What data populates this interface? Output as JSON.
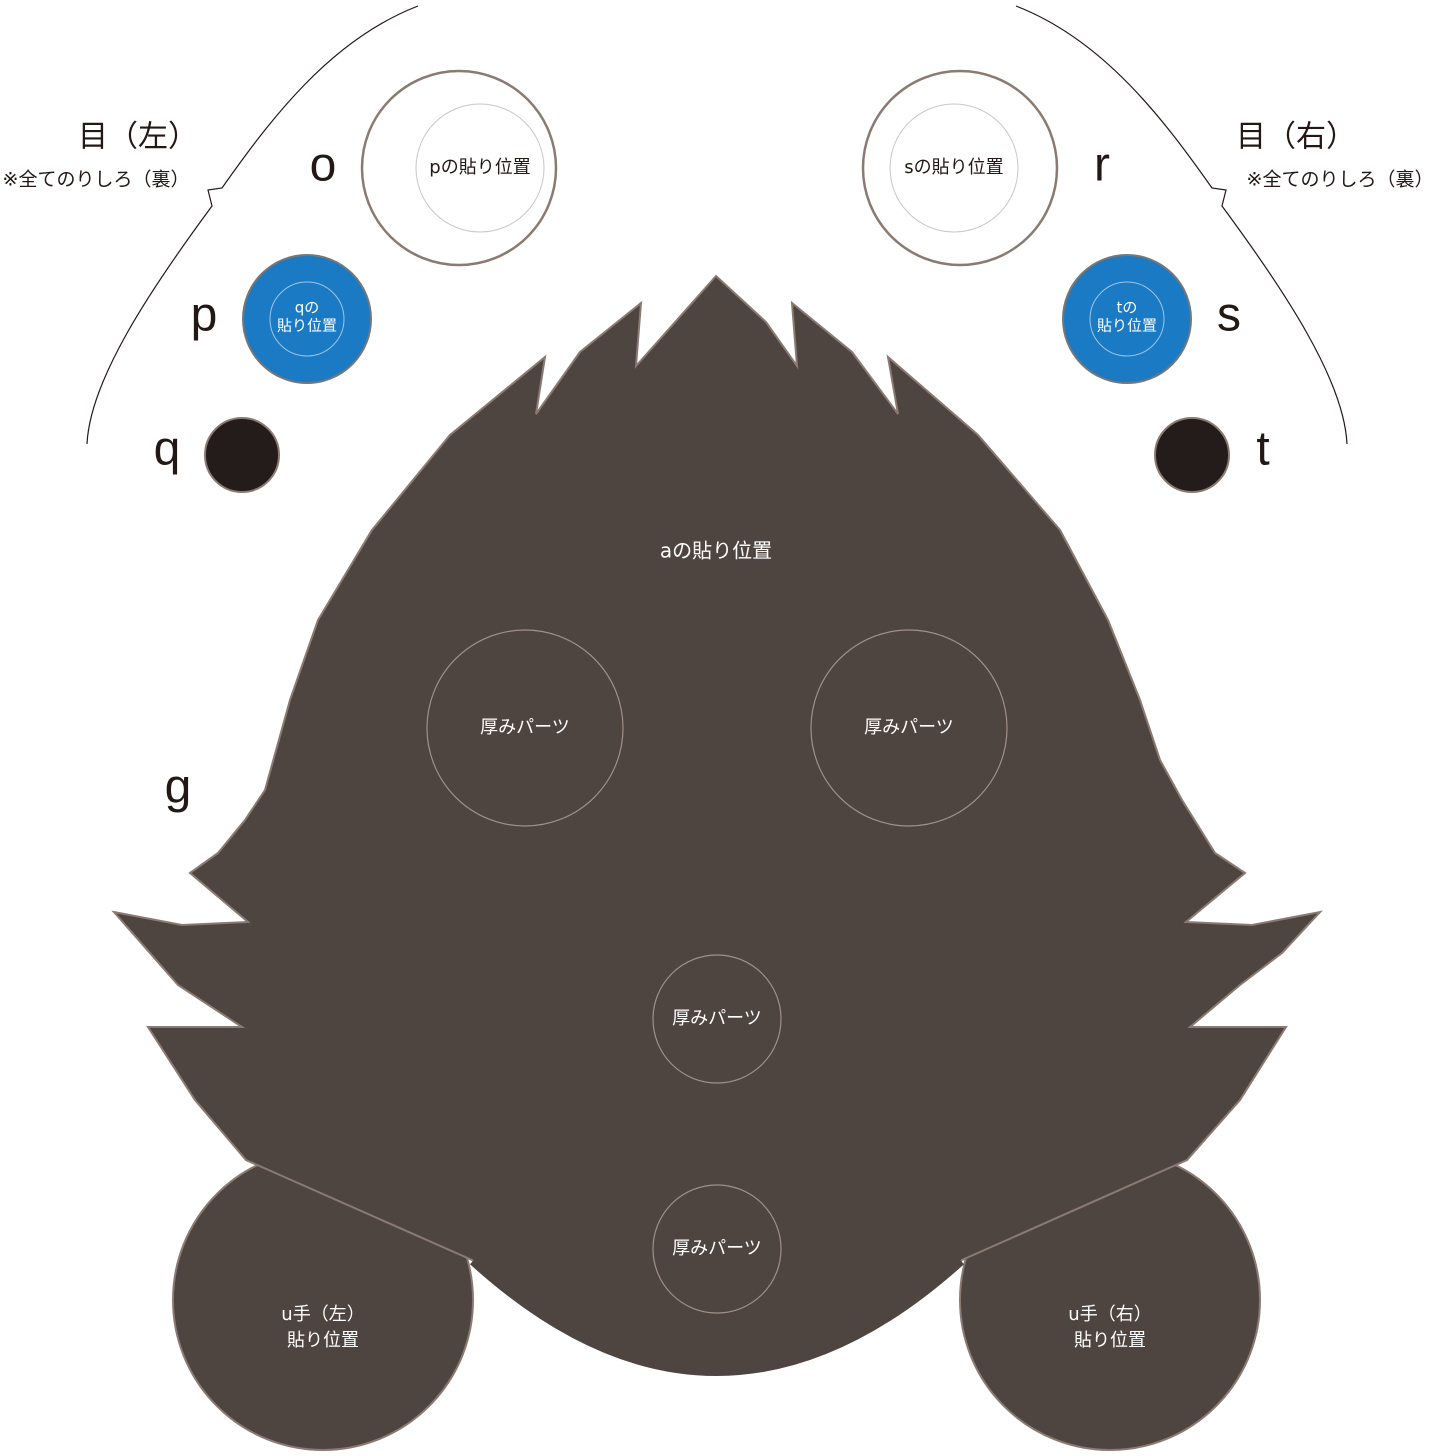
{
  "left_eye": {
    "title": "目（左）",
    "note": "※全てのりしろ（裏）"
  },
  "right_eye": {
    "title": "目（右）",
    "note": "※全てのりしろ（裏）"
  },
  "part_labels": [
    "o",
    "p",
    "q",
    "r",
    "s",
    "t",
    "g"
  ],
  "positions": {
    "p": "pの貼り位置",
    "s": "sの貼り位置",
    "q": [
      "qの",
      "貼り位置"
    ],
    "t": [
      "tの",
      "貼り位置"
    ],
    "a": "aの貼り位置"
  },
  "thickness_parts": [
    "厚みパーツ",
    "厚みパーツ",
    "厚みパーツ",
    "厚みパーツ"
  ],
  "hands": {
    "left": [
      "u手（左）",
      "貼り位置"
    ],
    "right": [
      "u手（右）",
      "貼り位置"
    ]
  }
}
